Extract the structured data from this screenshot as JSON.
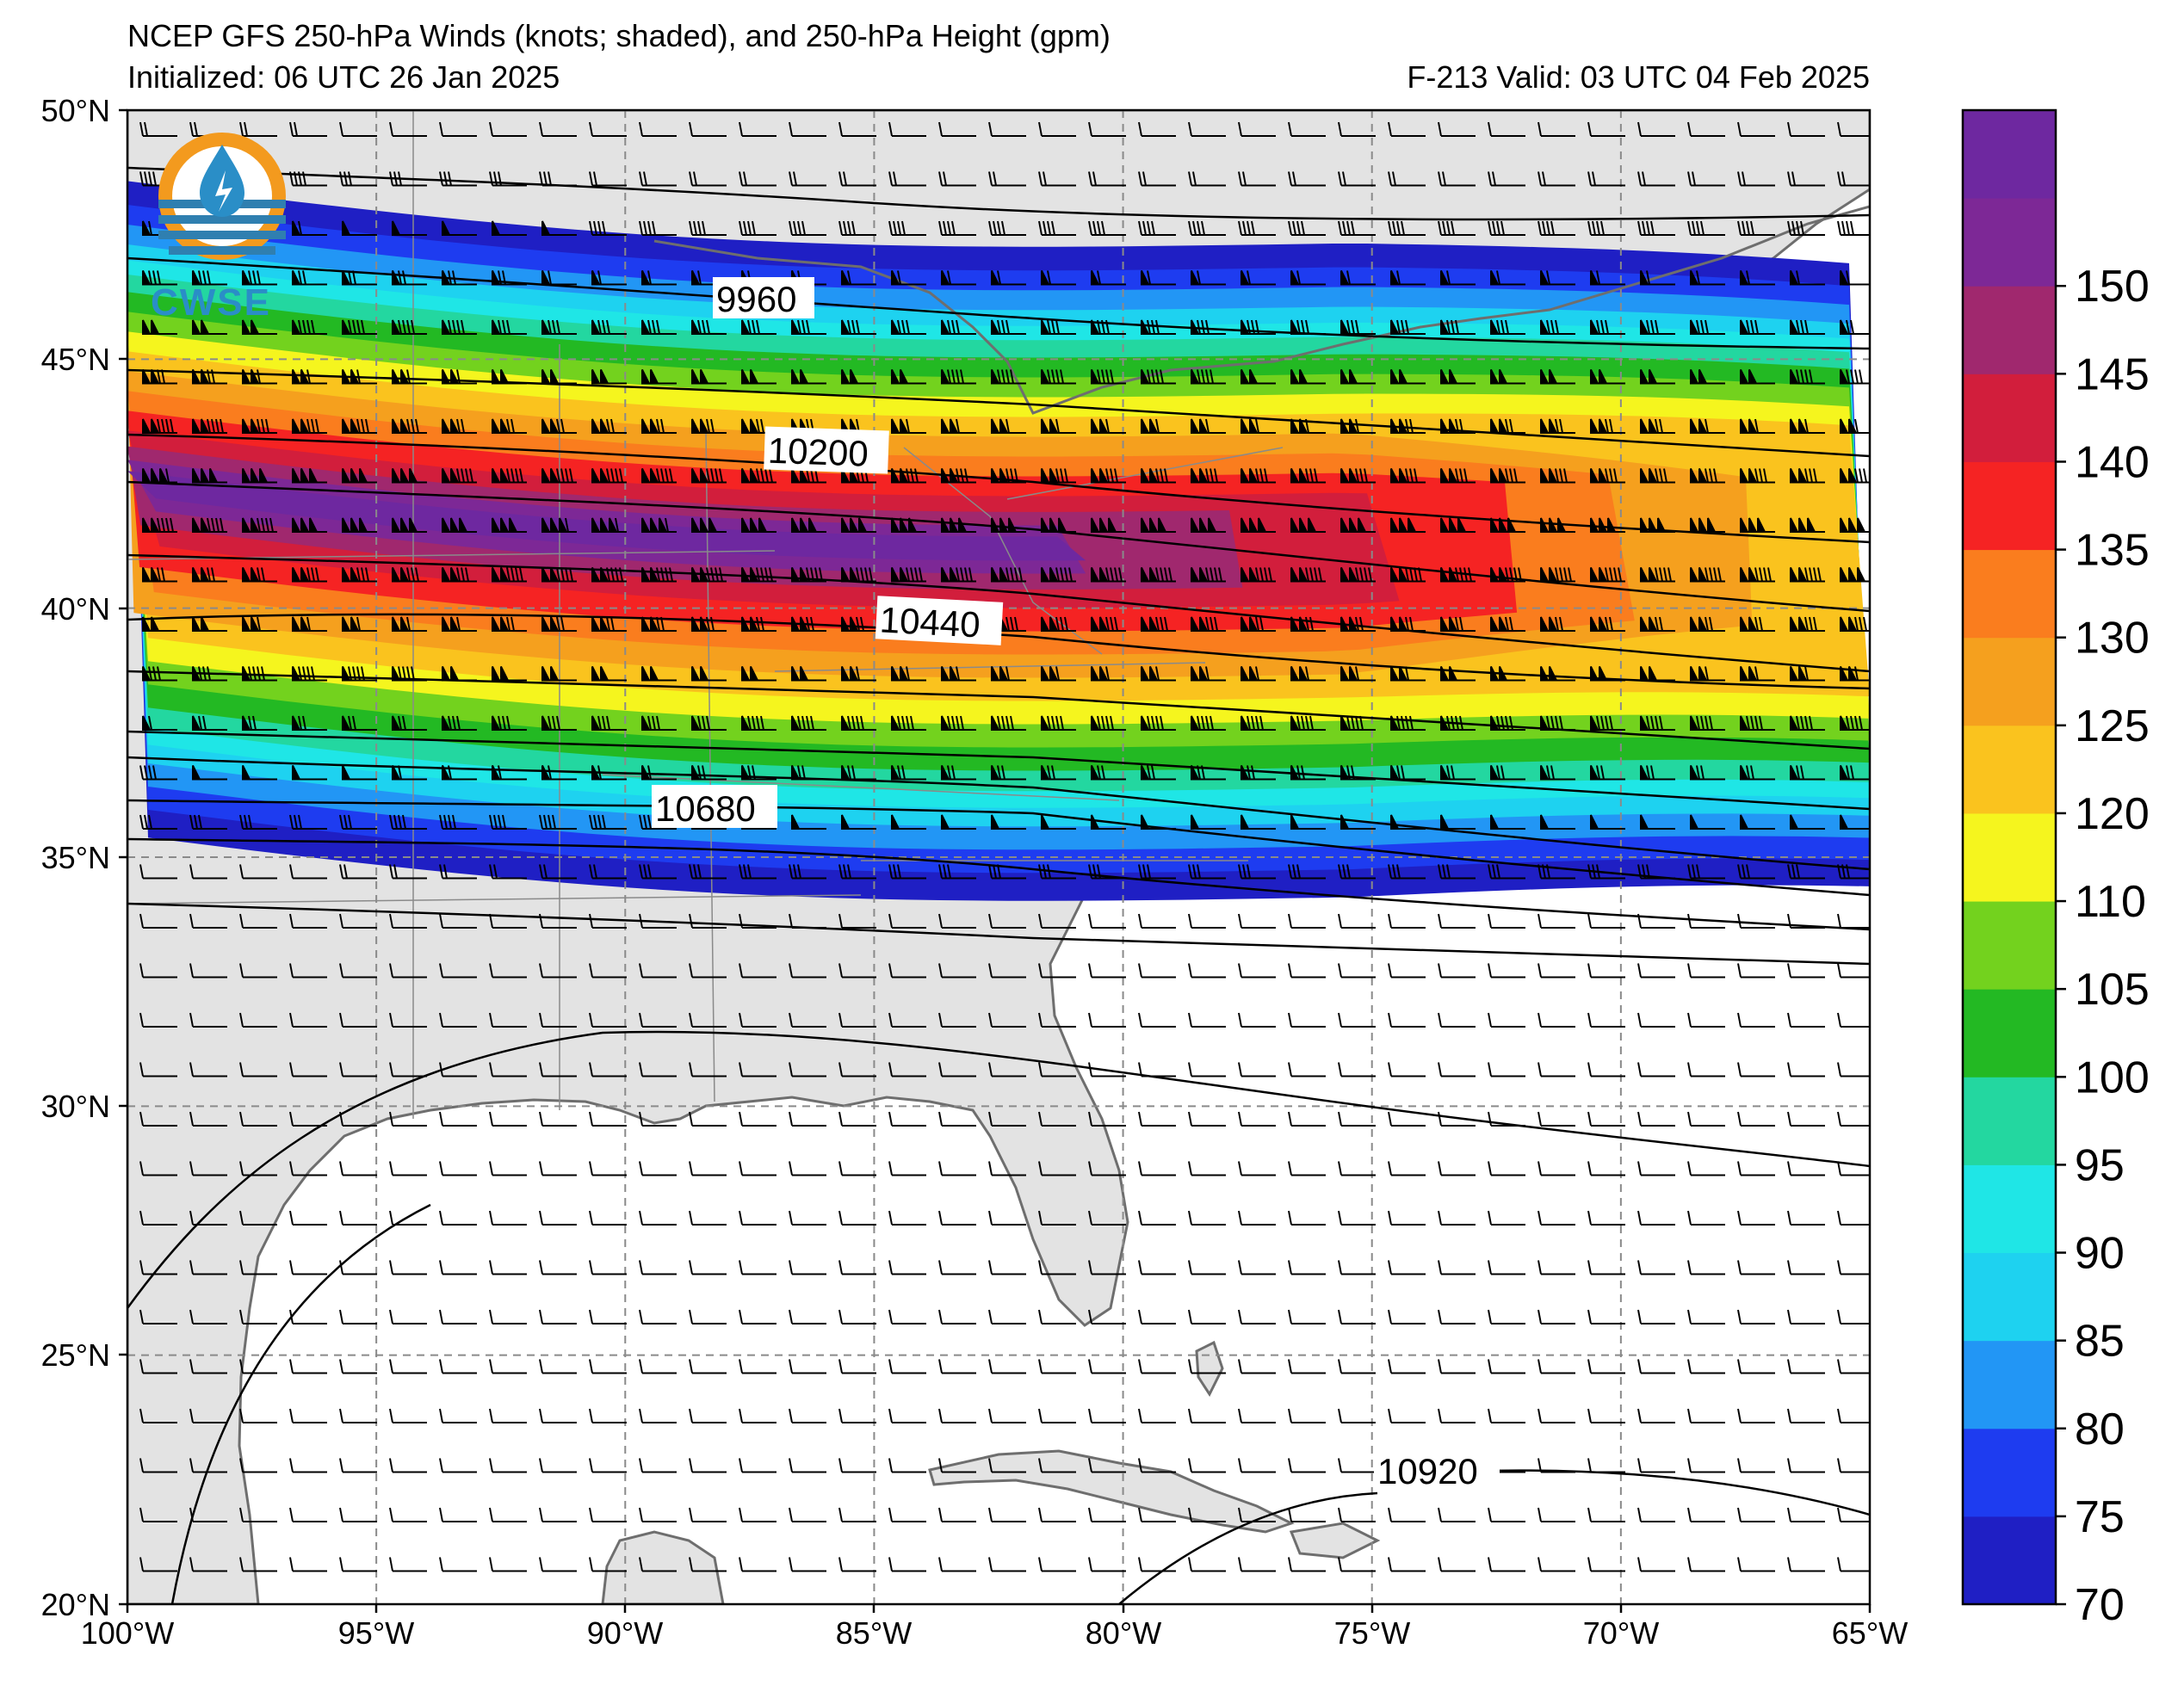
{
  "title": {
    "line1": "NCEP GFS 250-hPa Winds (knots; shaded), and 250-hPa Height (gpm)",
    "line2": "Initialized: 06 UTC 26 Jan 2025",
    "valid": "F-213  Valid: 03 UTC 04 Feb 2025"
  },
  "logo": {
    "text": "CWSE",
    "icon": "water-drop-icon"
  },
  "map": {
    "lon_range": [
      -100,
      -65
    ],
    "lat_range": [
      20,
      50
    ],
    "lon_ticks": [
      "100°W",
      "95°W",
      "90°W",
      "85°W",
      "80°W",
      "75°W",
      "70°W",
      "65°W"
    ],
    "lat_ticks": [
      "50°N",
      "45°N",
      "40°N",
      "35°N",
      "30°N",
      "25°N",
      "20°N"
    ],
    "land_color": "#e3e3e3",
    "ocean_color": "#ffffff"
  },
  "height_contours": [
    {
      "label": "9960"
    },
    {
      "label": "10200"
    },
    {
      "label": "10440"
    },
    {
      "label": "10680"
    },
    {
      "label": "10920"
    }
  ],
  "colorbar": {
    "levels": [
      "70",
      "75",
      "80",
      "85",
      "90",
      "95",
      "100",
      "105",
      "110",
      "120",
      "125",
      "130",
      "135",
      "140",
      "145",
      "150"
    ],
    "colors": [
      "#1f1fc4",
      "#1e3cf0",
      "#2296f5",
      "#1ed2f0",
      "#1fe6e6",
      "#23d7a0",
      "#23b923",
      "#73d21e",
      "#f5f51e",
      "#fac31e",
      "#f5a01e",
      "#fa7d1e",
      "#f52323",
      "#d21e3c",
      "#a0286e",
      "#7d2896",
      "#6e28a0"
    ]
  }
}
